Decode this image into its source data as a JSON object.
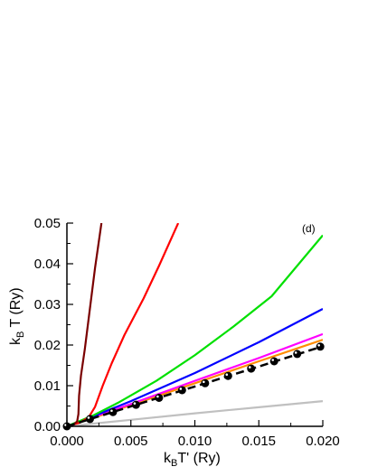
{
  "chart_data": {
    "type": "line",
    "panel_label": "(d)",
    "xlabel": {
      "prefix": "k",
      "sub": "B",
      "rest": "T' (Ry)"
    },
    "ylabel": {
      "prefix": "k",
      "sub": "B",
      "rest": " T (Ry)"
    },
    "xlim": [
      0,
      0.02
    ],
    "ylim": [
      0,
      0.05
    ],
    "xticks": [
      {
        "v": 0,
        "label": "0.000"
      },
      {
        "v": 0.005,
        "label": "0.005"
      },
      {
        "v": 0.01,
        "label": "0.010"
      },
      {
        "v": 0.015,
        "label": "0.015"
      },
      {
        "v": 0.02,
        "label": "0.020"
      }
    ],
    "yticks": [
      {
        "v": 0,
        "label": "0.00"
      },
      {
        "v": 0.01,
        "label": "0.01"
      },
      {
        "v": 0.02,
        "label": "0.02"
      },
      {
        "v": 0.03,
        "label": "0.03"
      },
      {
        "v": 0.04,
        "label": "0.04"
      },
      {
        "v": 0.05,
        "label": "0.05"
      }
    ],
    "grid": false,
    "series": [
      {
        "color": "#c0c0c0",
        "points": [
          [
            0,
            0
          ],
          [
            0.005,
            0.0016
          ],
          [
            0.01,
            0.0032
          ],
          [
            0.015,
            0.0047
          ],
          [
            0.02,
            0.0062
          ]
        ]
      },
      {
        "color": "#ff8c00",
        "points": [
          [
            0,
            0
          ],
          [
            0.002,
            0.002
          ],
          [
            0.005,
            0.0052
          ],
          [
            0.01,
            0.0106
          ],
          [
            0.015,
            0.016
          ],
          [
            0.02,
            0.0213
          ]
        ]
      },
      {
        "color": "#ff00ff",
        "points": [
          [
            0,
            0
          ],
          [
            0.002,
            0.0022
          ],
          [
            0.005,
            0.0055
          ],
          [
            0.01,
            0.0112
          ],
          [
            0.015,
            0.0168
          ],
          [
            0.02,
            0.0227
          ]
        ]
      },
      {
        "color": "#0000ff",
        "points": [
          [
            0,
            0
          ],
          [
            0.002,
            0.0024
          ],
          [
            0.005,
            0.0062
          ],
          [
            0.01,
            0.0131
          ],
          [
            0.015,
            0.0207
          ],
          [
            0.02,
            0.0289
          ]
        ]
      },
      {
        "color": "#00e000",
        "points": [
          [
            0,
            0
          ],
          [
            0.002,
            0.0026
          ],
          [
            0.004,
            0.0058
          ],
          [
            0.007,
            0.0112
          ],
          [
            0.01,
            0.0175
          ],
          [
            0.013,
            0.0245
          ],
          [
            0.016,
            0.032
          ],
          [
            0.02,
            0.047
          ]
        ]
      },
      {
        "color": "#ff0000",
        "points": [
          [
            0,
            0
          ],
          [
            0.001,
            0.0009
          ],
          [
            0.0017,
            0.0022
          ],
          [
            0.0022,
            0.0048
          ],
          [
            0.0028,
            0.01
          ],
          [
            0.0035,
            0.0155
          ],
          [
            0.0045,
            0.0225
          ],
          [
            0.006,
            0.0315
          ],
          [
            0.0072,
            0.0395
          ],
          [
            0.0087,
            0.05
          ]
        ]
      },
      {
        "color": "#7a0000",
        "points": [
          [
            0,
            0
          ],
          [
            0.0005,
            0.0004
          ],
          [
            0.0008,
            0.0012
          ],
          [
            0.0009,
            0.003
          ],
          [
            0.00095,
            0.0075
          ],
          [
            0.0011,
            0.0125
          ],
          [
            0.0014,
            0.019
          ],
          [
            0.0018,
            0.029
          ],
          [
            0.0022,
            0.039
          ],
          [
            0.0027,
            0.05
          ]
        ]
      },
      {
        "color": "#000000",
        "dash": true,
        "points": [
          [
            0,
            0
          ],
          [
            0.005,
            0.0049
          ],
          [
            0.01,
            0.0098
          ],
          [
            0.015,
            0.0147
          ],
          [
            0.02,
            0.0197
          ]
        ]
      }
    ],
    "markers": {
      "color": "#000000",
      "x": [
        0,
        0.0018,
        0.0036,
        0.0054,
        0.0072,
        0.009,
        0.0108,
        0.0126,
        0.0144,
        0.0162,
        0.018,
        0.0198
      ],
      "y": [
        0,
        0.0018,
        0.0035,
        0.0053,
        0.007,
        0.0089,
        0.0106,
        0.0124,
        0.0142,
        0.016,
        0.0178,
        0.0196
      ]
    }
  }
}
